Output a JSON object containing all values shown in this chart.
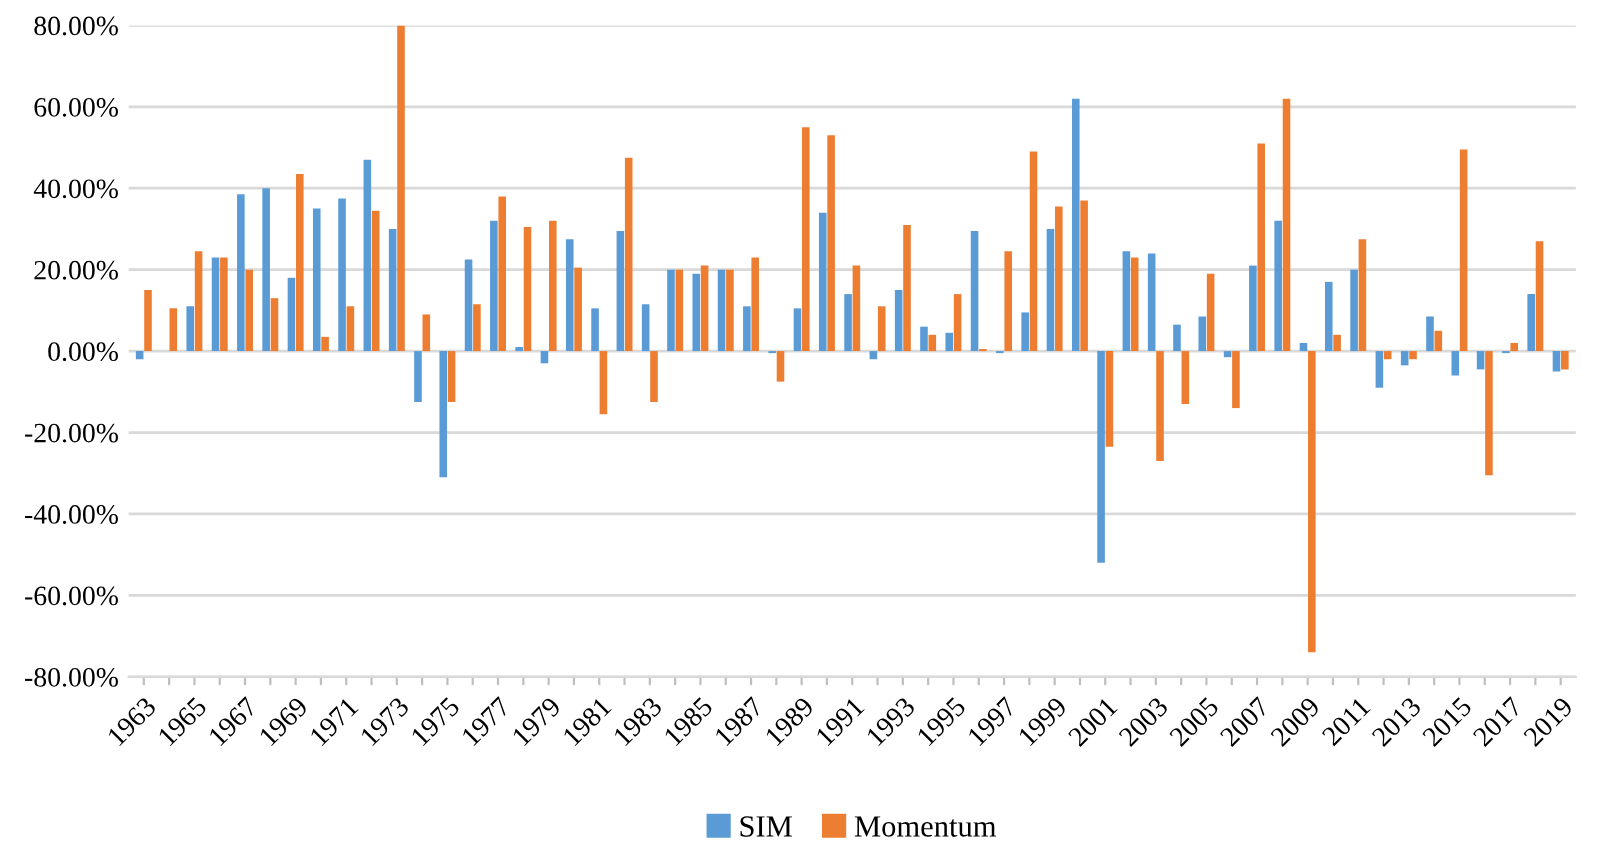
{
  "chart_data": {
    "type": "bar",
    "categories": [
      "1963",
      null,
      "1965",
      null,
      "1967",
      null,
      "1969",
      null,
      "1971",
      null,
      "1973",
      null,
      "1975",
      null,
      "1977",
      null,
      "1979",
      null,
      "1981",
      null,
      "1983",
      null,
      "1985",
      null,
      "1987",
      null,
      "1989",
      null,
      "1991",
      null,
      "1993",
      null,
      "1995",
      null,
      "1997",
      null,
      "1999",
      null,
      "2001",
      null,
      "2003",
      null,
      "2005",
      null,
      "2007",
      null,
      "2009",
      null,
      "2011",
      null,
      "2013",
      null,
      "2015",
      null,
      "2017",
      null,
      "2019"
    ],
    "series": [
      {
        "name": "SIM",
        "color": "#5b9bd5",
        "values": [
          -2,
          0,
          11,
          23,
          38.5,
          40,
          18,
          35,
          37.5,
          47,
          30,
          -12.5,
          -31,
          22.5,
          32,
          1,
          -3,
          27.5,
          10.5,
          29.5,
          11.5,
          20,
          19,
          20,
          11,
          -0.5,
          10.5,
          34,
          14,
          -2,
          15,
          6,
          4.5,
          29.5,
          -0.5,
          9.5,
          30,
          62,
          -52,
          24.5,
          24,
          6.5,
          8.5,
          -1.5,
          21,
          32,
          2,
          17,
          20,
          -9,
          -3.5,
          8.5,
          -6,
          -4.5,
          -0.5,
          14,
          -5
        ]
      },
      {
        "name": "Momentum",
        "color": "#ed7d31",
        "values": [
          15,
          10.5,
          24.5,
          23,
          20,
          13,
          43.5,
          3.5,
          11,
          34.5,
          80,
          9,
          -12.5,
          11.5,
          38,
          30.5,
          32,
          20.5,
          -15.5,
          47.5,
          -12.5,
          20,
          21,
          20,
          23,
          -7.5,
          55,
          53,
          21,
          11,
          31,
          4,
          14,
          0.5,
          24.5,
          49,
          35.5,
          37,
          -23.5,
          23,
          -27,
          -13,
          19,
          -14,
          51,
          62,
          -74,
          4,
          27.5,
          -2,
          -2,
          5,
          49.5,
          -30.5,
          2,
          27,
          -4.5
        ]
      }
    ],
    "ylim": [
      -80,
      80
    ],
    "yticks": [
      {
        "value": -80,
        "label": "-80.00%"
      },
      {
        "value": -60,
        "label": "-60.00%"
      },
      {
        "value": -40,
        "label": "-40.00%"
      },
      {
        "value": -20,
        "label": "-20.00%"
      },
      {
        "value": 0,
        "label": "0.00%"
      },
      {
        "value": 20,
        "label": "20.00%"
      },
      {
        "value": 40,
        "label": "40.00%"
      },
      {
        "value": 60,
        "label": "60.00%"
      },
      {
        "value": 80,
        "label": "80.00%"
      }
    ],
    "grid": "y",
    "legend": "bottom"
  }
}
